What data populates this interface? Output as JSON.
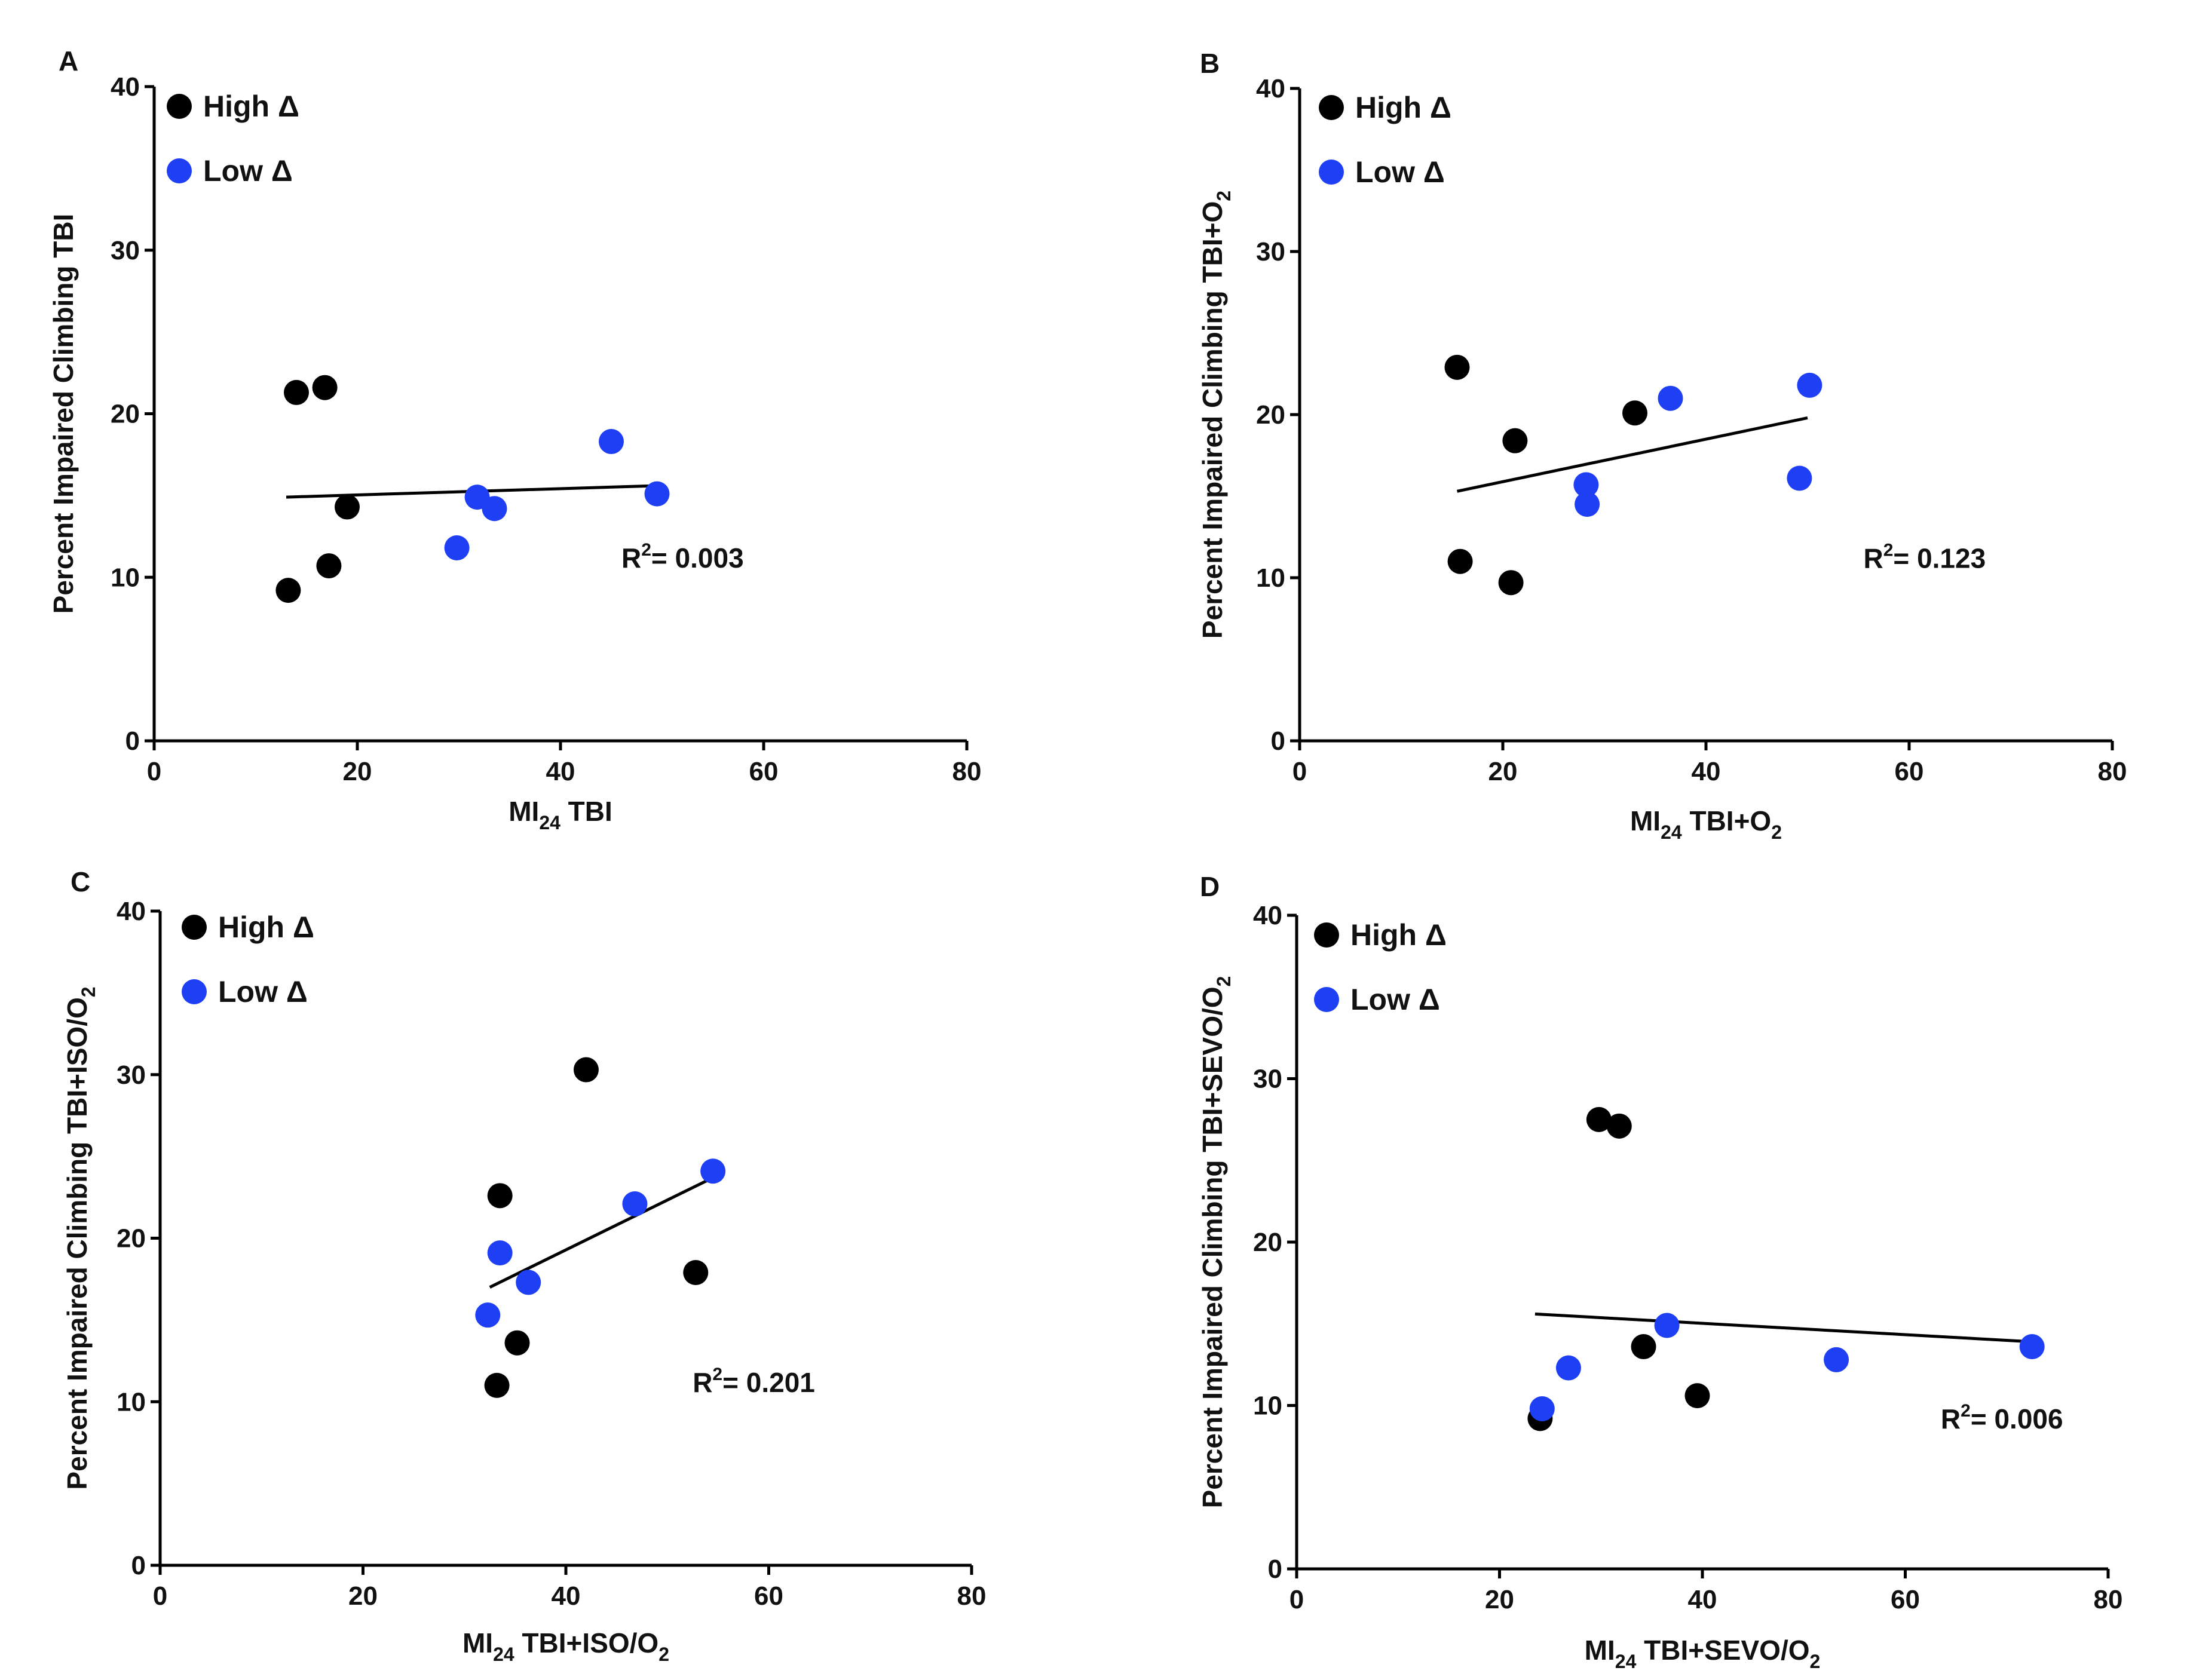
{
  "figure": {
    "x_ticks": [
      0,
      20,
      40,
      60,
      80
    ],
    "y_ticks": [
      0,
      10,
      20,
      30,
      40
    ]
  },
  "colors": {
    "high": "#000000",
    "low": "#1f3ff5"
  },
  "chart_data": [
    {
      "type": "scatter",
      "panel": "A",
      "ylabel": "Percent Impaired Climbing TBI",
      "ylabel_sub": "",
      "xlabel_main": "MI",
      "xlabel_sub": "24",
      "xlabel_rest": " TBI",
      "xlabel_rest_sub": "",
      "xlim": [
        0,
        80
      ],
      "ylim": [
        0,
        40
      ],
      "legend": [
        {
          "label": "High Δ",
          "color": "#000000"
        },
        {
          "label": "Low Δ",
          "color": "#1f3ff5"
        }
      ],
      "series": [
        {
          "name": "High Δ",
          "color": "#000000",
          "points": [
            [
              14,
              21.3
            ],
            [
              16.8,
              21.6
            ],
            [
              13.2,
              9.2
            ],
            [
              17.2,
              10.7
            ],
            [
              19,
              14.3
            ]
          ]
        },
        {
          "name": "Low Δ",
          "color": "#1f3ff5",
          "points": [
            [
              31.8,
              14.9
            ],
            [
              33.5,
              14.2
            ],
            [
              29.8,
              11.8
            ],
            [
              45,
              18.3
            ],
            [
              49.5,
              15.1
            ]
          ]
        }
      ],
      "fit_line": [
        [
          13,
          14.9
        ],
        [
          49.5,
          15.6
        ]
      ],
      "r2_label": "R",
      "r2_sup": "2",
      "r2_value": "= 0.003",
      "r2_at": [
        46,
        10.6
      ]
    },
    {
      "type": "scatter",
      "panel": "B",
      "ylabel": "Percent Impaired Climbing TBI+O",
      "ylabel_sub": "2",
      "xlabel_main": "MI",
      "xlabel_sub": "24",
      "xlabel_rest": " TBI+O",
      "xlabel_rest_sub": "2",
      "xlim": [
        0,
        80
      ],
      "ylim": [
        0,
        40
      ],
      "legend": [
        {
          "label": "High Δ",
          "color": "#000000"
        },
        {
          "label": "Low Δ",
          "color": "#1f3ff5"
        }
      ],
      "series": [
        {
          "name": "High Δ",
          "color": "#000000",
          "points": [
            [
              15.5,
              22.9
            ],
            [
              21.2,
              18.4
            ],
            [
              15.8,
              11
            ],
            [
              20.8,
              9.7
            ],
            [
              33,
              20.1
            ]
          ]
        },
        {
          "name": "Low Δ",
          "color": "#1f3ff5",
          "points": [
            [
              36.5,
              21
            ],
            [
              50.2,
              21.8
            ],
            [
              28.2,
              15.7
            ],
            [
              28.3,
              14.5
            ],
            [
              49.2,
              16.1
            ]
          ]
        }
      ],
      "fit_line": [
        [
          15.5,
          15.3
        ],
        [
          50,
          19.8
        ]
      ],
      "r2_label": "R",
      "r2_sup": "2",
      "r2_value": "= 0.123",
      "r2_at": [
        55.5,
        10.6
      ]
    },
    {
      "type": "scatter",
      "panel": "C",
      "ylabel": "Percent Impaired Climbing TBI+ISO/O",
      "ylabel_sub": "2",
      "xlabel_main": "MI",
      "xlabel_sub": "24",
      "xlabel_rest": " TBI+ISO/O",
      "xlabel_rest_sub": "2",
      "xlim": [
        0,
        80
      ],
      "ylim": [
        0,
        40
      ],
      "legend": [
        {
          "label": "High Δ",
          "color": "#000000"
        },
        {
          "label": "Low Δ",
          "color": "#1f3ff5"
        }
      ],
      "series": [
        {
          "name": "High Δ",
          "color": "#000000",
          "points": [
            [
              42,
              30.3
            ],
            [
              33.5,
              22.6
            ],
            [
              35.2,
              13.6
            ],
            [
              33.2,
              11
            ],
            [
              52.8,
              17.9
            ]
          ]
        },
        {
          "name": "Low Δ",
          "color": "#1f3ff5",
          "points": [
            [
              33.5,
              19.1
            ],
            [
              36.3,
              17.3
            ],
            [
              32.3,
              15.3
            ],
            [
              46.8,
              22.1
            ],
            [
              54.5,
              24.1
            ]
          ]
        }
      ],
      "fit_line": [
        [
          32.5,
          17
        ],
        [
          54.5,
          23.7
        ]
      ],
      "r2_label": "R",
      "r2_sup": "2",
      "r2_value": "= 0.201",
      "r2_at": [
        52.5,
        10.6
      ]
    },
    {
      "type": "scatter",
      "panel": "D",
      "ylabel": "Percent Impaired Climbing TBI+SEVO/O",
      "ylabel_sub": "2",
      "xlabel_main": "MI",
      "xlabel_sub": "24",
      "xlabel_rest": " TBI+SEVO/O",
      "xlabel_rest_sub": "2",
      "xlim": [
        0,
        80
      ],
      "ylim": [
        0,
        40
      ],
      "legend": [
        {
          "label": "High Δ",
          "color": "#000000"
        },
        {
          "label": "Low Δ",
          "color": "#1f3ff5"
        }
      ],
      "series": [
        {
          "name": "High Δ",
          "color": "#000000",
          "points": [
            [
              29.8,
              27.5
            ],
            [
              31.8,
              27.1
            ],
            [
              34.2,
              13.6
            ],
            [
              39.5,
              10.6
            ],
            [
              24,
              9.2
            ]
          ]
        },
        {
          "name": "Low Δ",
          "color": "#1f3ff5",
          "points": [
            [
              24.2,
              9.8
            ],
            [
              26.8,
              12.3
            ],
            [
              36.5,
              14.9
            ],
            [
              53.2,
              12.8
            ],
            [
              72.5,
              13.6
            ]
          ]
        }
      ],
      "fit_line": [
        [
          23.5,
          15.6
        ],
        [
          72.5,
          13.9
        ]
      ],
      "r2_label": "R",
      "r2_sup": "2",
      "r2_value": "= 0.006",
      "r2_at": [
        63.5,
        8.6
      ]
    }
  ]
}
